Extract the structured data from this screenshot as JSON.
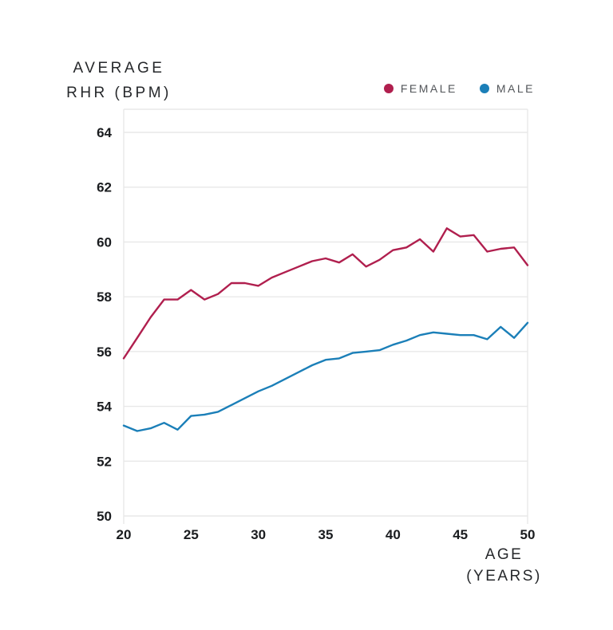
{
  "title": {
    "line1": "AVERAGE",
    "line2": "RHR (BPM)"
  },
  "legend": {
    "female": "FEMALE",
    "male": "MALE"
  },
  "x_axis_label": {
    "line1": "AGE",
    "line2": "(YEARS)"
  },
  "colors": {
    "female": "#b01f4e",
    "male": "#1b7fb8",
    "grid": "#e8e8e8",
    "tick_label": "#1a1c1f",
    "legend_text": "#53565a",
    "title_text": "#26282b",
    "background": "#ffffff"
  },
  "chart_data": {
    "type": "line",
    "title": "AVERAGE RHR (BPM)",
    "xlabel": "AGE (YEARS)",
    "ylabel": "AVERAGE RHR (BPM)",
    "x": [
      20,
      21,
      22,
      23,
      24,
      25,
      26,
      27,
      28,
      29,
      30,
      31,
      32,
      33,
      34,
      35,
      36,
      37,
      38,
      39,
      40,
      41,
      42,
      43,
      44,
      45,
      46,
      47,
      48,
      49,
      50
    ],
    "series": [
      {
        "name": "FEMALE",
        "color": "#b01f4e",
        "values": [
          55.75,
          56.5,
          57.25,
          57.9,
          57.9,
          58.25,
          57.9,
          58.1,
          58.5,
          58.5,
          58.4,
          58.7,
          58.9,
          59.1,
          59.3,
          59.4,
          59.25,
          59.55,
          59.1,
          59.35,
          59.7,
          59.8,
          60.1,
          59.65,
          60.5,
          60.2,
          60.25,
          59.65,
          59.75,
          59.8,
          59.15
        ]
      },
      {
        "name": "MALE",
        "color": "#1b7fb8",
        "values": [
          53.3,
          53.1,
          53.2,
          53.4,
          53.15,
          53.65,
          53.7,
          53.8,
          54.05,
          54.3,
          54.55,
          54.75,
          55.0,
          55.25,
          55.5,
          55.7,
          55.75,
          55.95,
          56.0,
          56.05,
          56.25,
          56.4,
          56.6,
          56.7,
          56.65,
          56.6,
          56.6,
          56.45,
          56.9,
          56.5,
          57.05
        ]
      }
    ],
    "xticks": [
      20,
      25,
      30,
      35,
      40,
      45,
      50
    ],
    "yticks": [
      50,
      52,
      54,
      56,
      58,
      60,
      62,
      64
    ],
    "xlim": [
      20,
      50
    ],
    "ylim": [
      50,
      64.8
    ],
    "grid": "horizontal-only",
    "legend_position": "top-right"
  }
}
